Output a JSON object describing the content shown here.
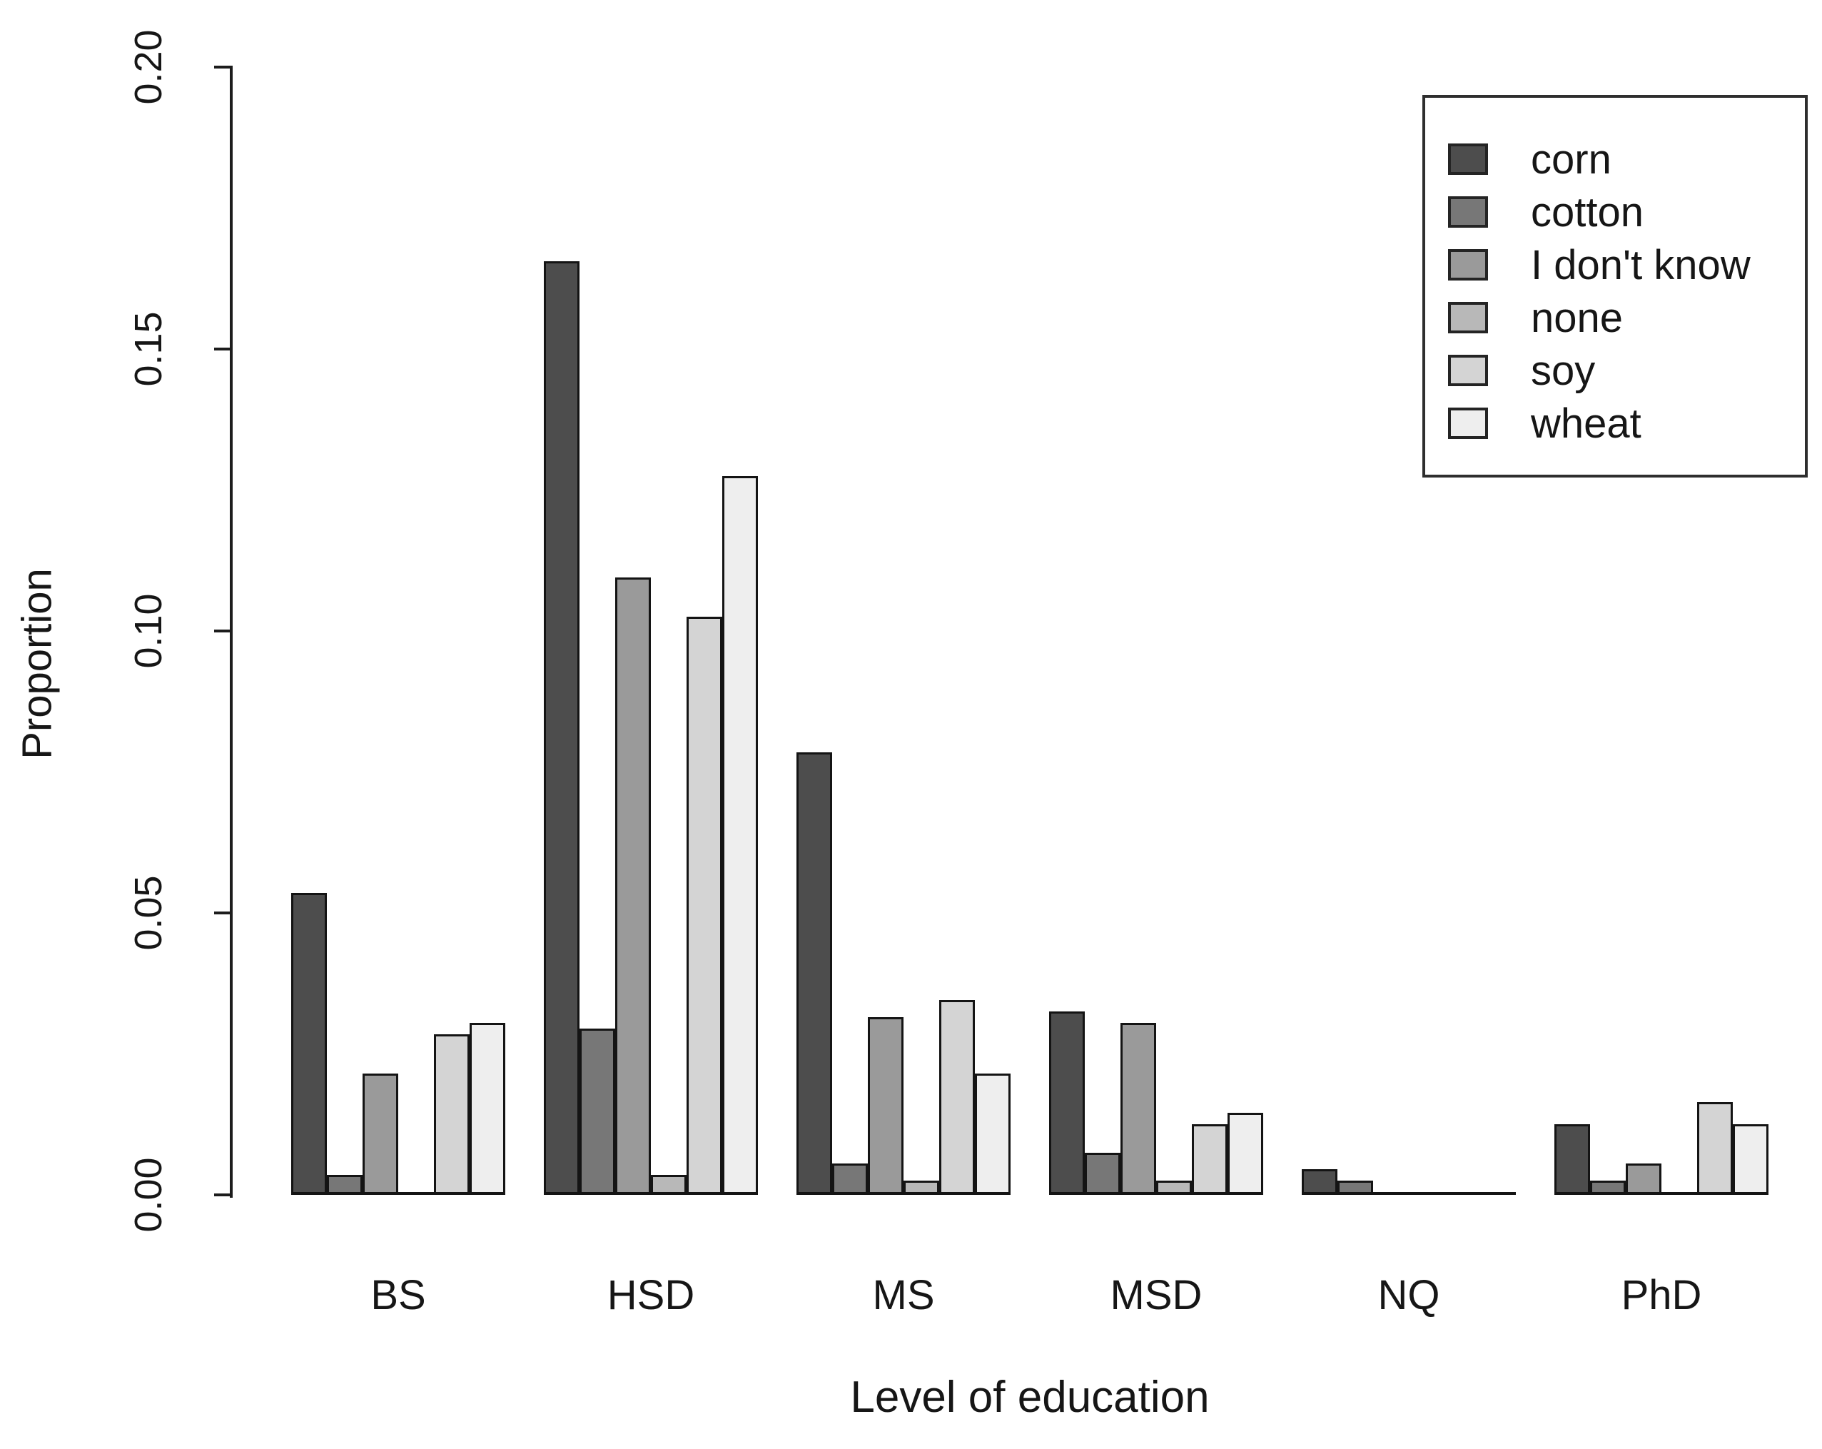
{
  "figure": {
    "background": "#ffffff",
    "axis_color": "#1c1c1c",
    "bar_border_color": "#141414"
  },
  "chart_data": {
    "type": "bar",
    "title": "",
    "xlabel": "Level of education",
    "ylabel": "Proportion",
    "categories": [
      "BS",
      "HSD",
      "MS",
      "MSD",
      "NQ",
      "PhD"
    ],
    "series": [
      {
        "name": "corn",
        "color": "#4D4D4D",
        "values": [
          0.053,
          0.165,
          0.078,
          0.032,
          0.004,
          0.012
        ]
      },
      {
        "name": "cotton",
        "color": "#777777",
        "values": [
          0.003,
          0.029,
          0.005,
          0.007,
          0.002,
          0.002
        ]
      },
      {
        "name": "I don't know",
        "color": "#9A9A9A",
        "values": [
          0.021,
          0.109,
          0.031,
          0.03,
          0.0,
          0.005
        ]
      },
      {
        "name": "none",
        "color": "#B8B8B8",
        "values": [
          0.0,
          0.003,
          0.002,
          0.002,
          0.0,
          0.0
        ]
      },
      {
        "name": "soy",
        "color": "#D4D4D4",
        "values": [
          0.028,
          0.102,
          0.034,
          0.012,
          0.0,
          0.016
        ]
      },
      {
        "name": "wheat",
        "color": "#EEEEEE",
        "values": [
          0.03,
          0.127,
          0.021,
          0.014,
          0.0,
          0.012
        ]
      }
    ],
    "ylim": [
      0,
      0.2
    ],
    "yticks": [
      "0.00",
      "0.05",
      "0.10",
      "0.15",
      "0.20"
    ],
    "grid": false,
    "legend_position": "top-right"
  }
}
